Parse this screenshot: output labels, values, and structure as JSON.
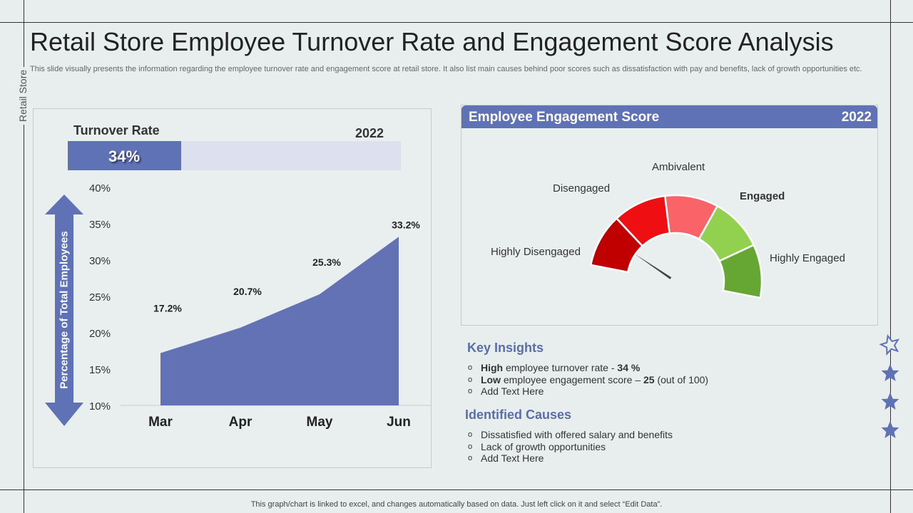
{
  "slide": {
    "title": "Retail Store Employee Turnover Rate and Engagement Score Analysis",
    "subtitle": "This slide visually presents the information regarding the employee turnover rate and engagement score at retail store. It also list main causes behind poor scores such as dissatisfaction with pay and benefits, lack of growth opportunities etc.",
    "side_label": "Retail Store",
    "footer": "This graph/chart is linked to excel,  and changes automatically based on data. Just left click on it and select “Edit Data”."
  },
  "turnover": {
    "label": "Turnover Rate",
    "year": "2022",
    "value_text": "34%",
    "value": 34,
    "y_axis_label": "Percentage of Total Employees"
  },
  "chart_data": {
    "type": "area",
    "title": "Turnover Rate",
    "categories": [
      "Mar",
      "Apr",
      "May",
      "Jun"
    ],
    "values": [
      17.2,
      20.7,
      25.3,
      33.2
    ],
    "value_labels": [
      "17.2%",
      "20.7%",
      "25.3%",
      "33.2%"
    ],
    "yticks": [
      "10%",
      "15%",
      "20%",
      "25%",
      "30%",
      "35%",
      "40%"
    ],
    "ylim": [
      10,
      40
    ],
    "ylabel": "Percentage of Total Employees",
    "xlabel": "",
    "color": "#6272b5"
  },
  "engagement": {
    "title": "Employee  Engagement Score",
    "year": "2022",
    "score": 25,
    "labels": {
      "highly_disengaged": "Highly  Disengaged",
      "disengaged": "Disengaged",
      "ambivalent": "Ambivalent",
      "engaged": "Engaged",
      "highly_engaged": "Highly  Engaged"
    },
    "segment_colors": [
      "#c00000",
      "#ef0f12",
      "#fa6468",
      "#92d050",
      "#66a632"
    ]
  },
  "insights": {
    "title": "Key Insights",
    "items": [
      {
        "bold": "High",
        "text": " employee turnover rate - ",
        "bold2": "34 %",
        "tail": ""
      },
      {
        "bold": "Low",
        "text": " employee engagement score – ",
        "bold2": "25",
        "tail": " (out of 100)"
      },
      {
        "bold": "",
        "text": "Add Text Here",
        "bold2": "",
        "tail": ""
      }
    ]
  },
  "causes": {
    "title": "Identified Causes",
    "items": [
      "Dissatisfied with offered salary and benefits",
      "Lack of growth opportunities",
      "Add Text Here"
    ]
  },
  "colors": {
    "accent": "#5f72b5",
    "background": "#e8eeee"
  }
}
